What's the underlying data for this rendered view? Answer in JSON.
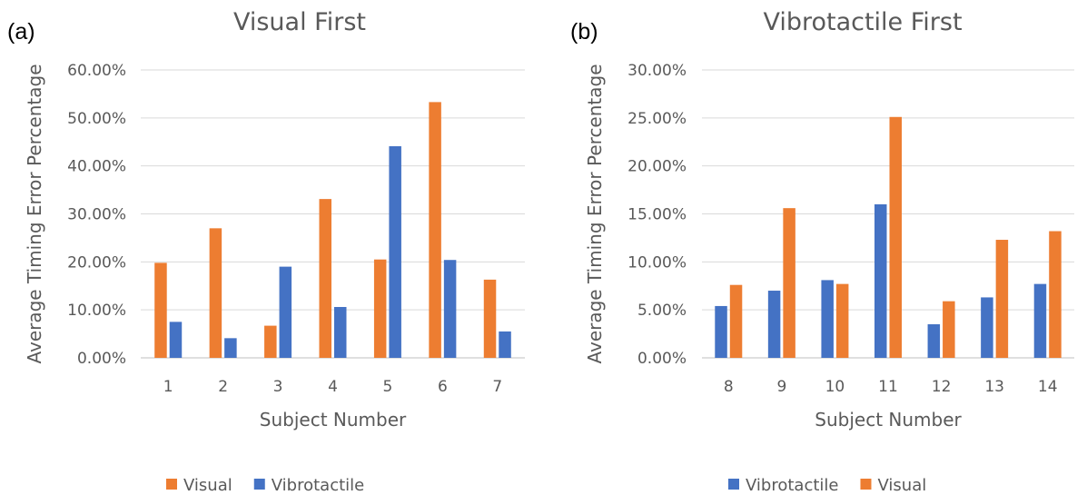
{
  "chart_data": [
    {
      "type": "bar",
      "panel_label": "(a)",
      "title": "Visual First",
      "xlabel": "Subject Number",
      "ylabel": "Average Timing Error Percentage",
      "categories": [
        "1",
        "2",
        "3",
        "4",
        "5",
        "6",
        "7"
      ],
      "yticks": [
        "0.00%",
        "10.00%",
        "20.00%",
        "30.00%",
        "40.00%",
        "50.00%",
        "60.00%"
      ],
      "ylim": [
        0,
        60
      ],
      "grid": true,
      "legend_position": "bottom",
      "series": [
        {
          "name": "Visual",
          "color": "#ED7D31",
          "values": [
            19.8,
            27.0,
            6.7,
            33.1,
            20.5,
            53.3,
            16.3
          ]
        },
        {
          "name": "Vibrotactile",
          "color": "#4472C4",
          "values": [
            7.5,
            4.1,
            19.0,
            10.6,
            44.1,
            20.4,
            5.5
          ]
        }
      ]
    },
    {
      "type": "bar",
      "panel_label": "(b)",
      "title": "Vibrotactile First",
      "xlabel": "Subject Number",
      "ylabel": "Average Timing Error Percentage",
      "categories": [
        "8",
        "9",
        "10",
        "11",
        "12",
        "13",
        "14"
      ],
      "yticks": [
        "0.00%",
        "5.00%",
        "10.00%",
        "15.00%",
        "20.00%",
        "25.00%",
        "30.00%"
      ],
      "ylim": [
        0,
        30
      ],
      "grid": true,
      "legend_position": "bottom",
      "series": [
        {
          "name": "Vibrotactile",
          "color": "#4472C4",
          "values": [
            5.4,
            7.0,
            8.1,
            16.0,
            3.5,
            6.3,
            7.7
          ]
        },
        {
          "name": "Visual",
          "color": "#ED7D31",
          "values": [
            7.6,
            15.6,
            7.7,
            25.1,
            5.9,
            12.3,
            13.2
          ]
        }
      ]
    }
  ]
}
